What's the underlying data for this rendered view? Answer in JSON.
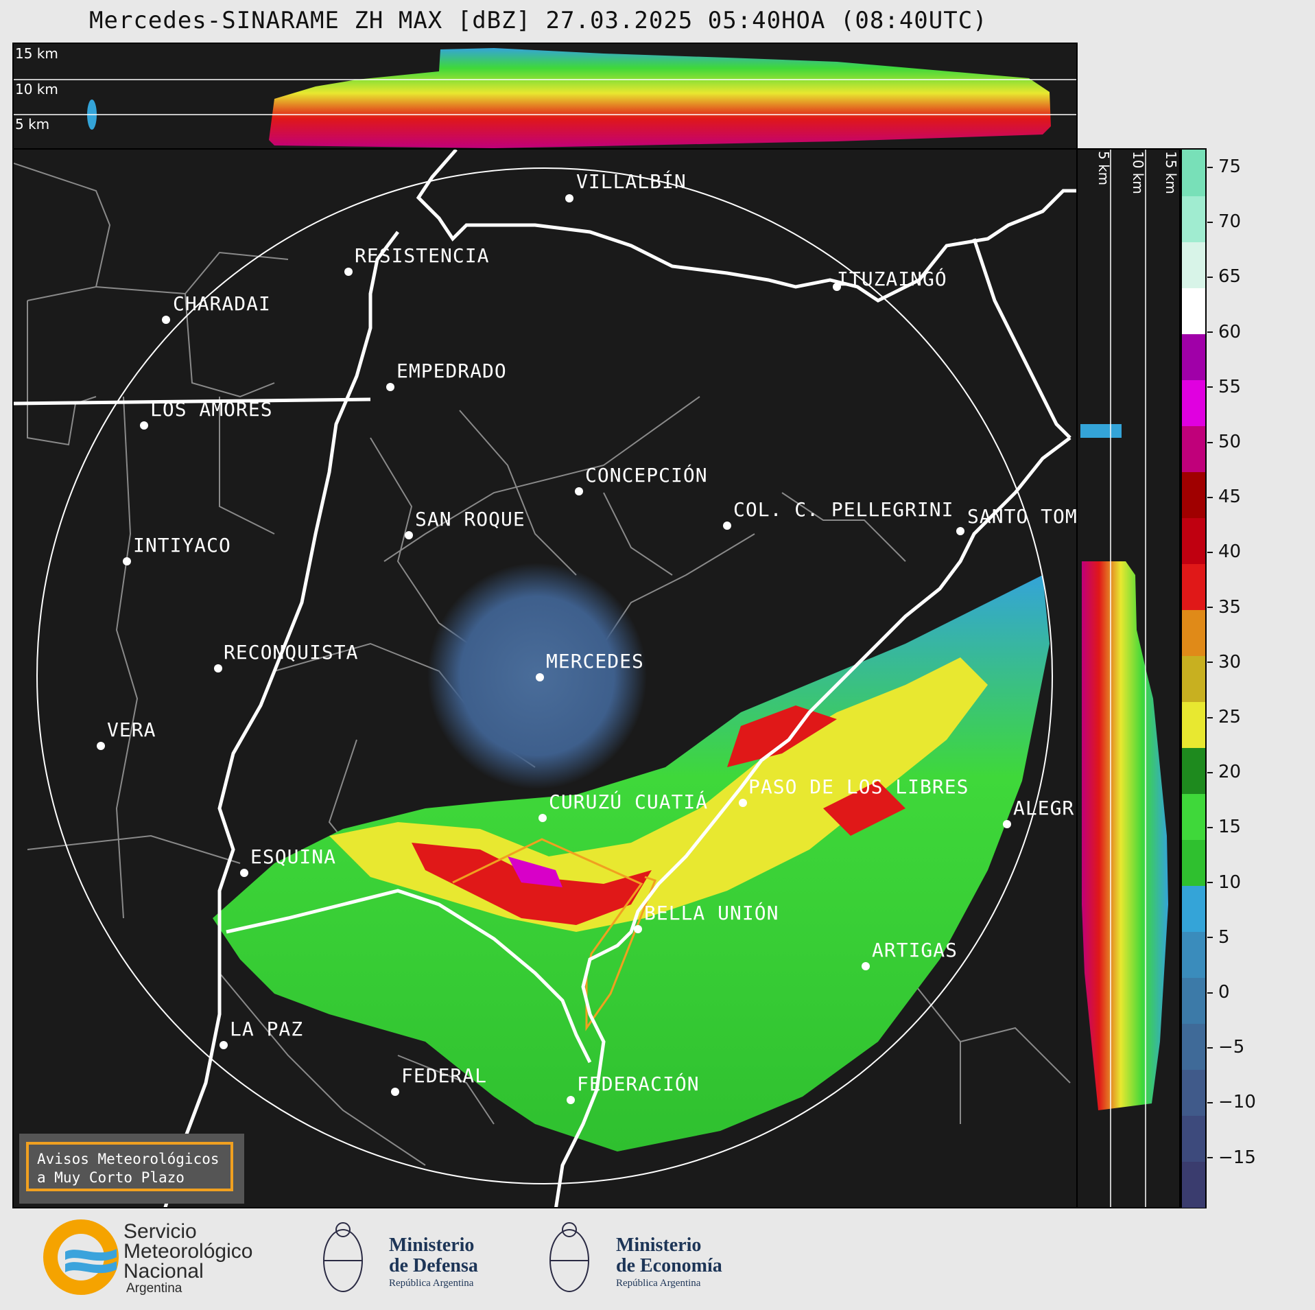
{
  "title": "Mercedes-SINARAME ZH MAX [dBZ] 27.03.2025 05:40HOA (08:40UTC)",
  "top_panel": {
    "levels": [
      "15 km",
      "10 km",
      "5 km"
    ]
  },
  "side_panel": {
    "levels": [
      "5 km",
      "10 km",
      "15 km"
    ]
  },
  "colorbar": {
    "ticks": [
      "75",
      "70",
      "65",
      "60",
      "55",
      "50",
      "45",
      "40",
      "35",
      "30",
      "25",
      "20",
      "15",
      "10",
      "5",
      "0",
      "−5",
      "−10",
      "−15"
    ],
    "colors": [
      "#3a3c6e",
      "#3d4a7c",
      "#405a8a",
      "#3f6a98",
      "#3c7aa8",
      "#3a8cbc",
      "#34a4d8",
      "#2fc02f",
      "#3fd83a",
      "#1e8a1e",
      "#e8e830",
      "#c8b020",
      "#e08a18",
      "#e01818",
      "#c00010",
      "#a00000",
      "#c0007a",
      "#e000e0",
      "#a000a8",
      "#ffffff",
      "#d8f4e8",
      "#a0ecd0",
      "#78e0b8"
    ]
  },
  "cities": [
    {
      "name": "VILLALBÍN"
    },
    {
      "name": "RESISTENCIA"
    },
    {
      "name": "CHARADAI"
    },
    {
      "name": "ITUZAINGÓ"
    },
    {
      "name": "EMPEDRADO"
    },
    {
      "name": "LOS AMORES"
    },
    {
      "name": "CONCEPCIÓN"
    },
    {
      "name": "SAN ROQUE"
    },
    {
      "name": "COL. C. PELLEGRINI"
    },
    {
      "name": "SANTO TOM"
    },
    {
      "name": "INTIYACO"
    },
    {
      "name": "RECONQUISTA"
    },
    {
      "name": "MERCEDES"
    },
    {
      "name": "VERA"
    },
    {
      "name": "CURUZÚ CUATIÁ"
    },
    {
      "name": "PASO DE LOS LIBRES"
    },
    {
      "name": "ALEGR"
    },
    {
      "name": "ESQUINA"
    },
    {
      "name": "BELLA UNIÓN"
    },
    {
      "name": "ARTIGAS"
    },
    {
      "name": "LA PAZ"
    },
    {
      "name": "FEDERAL"
    },
    {
      "name": "FEDERACIÓN"
    }
  ],
  "warning": {
    "line1": "Avisos Meteorológicos",
    "line2": "a Muy Corto Plazo"
  },
  "logos": {
    "smn": {
      "line1": "Servicio",
      "line2": "Meteorológico",
      "line3": "Nacional",
      "line4": "Argentina"
    },
    "defensa": {
      "line1": "Ministerio",
      "line2": "de Defensa",
      "line3": "República Argentina"
    },
    "economia": {
      "line1": "Ministerio",
      "line2": "de Economía",
      "line3": "República Argentina"
    }
  }
}
